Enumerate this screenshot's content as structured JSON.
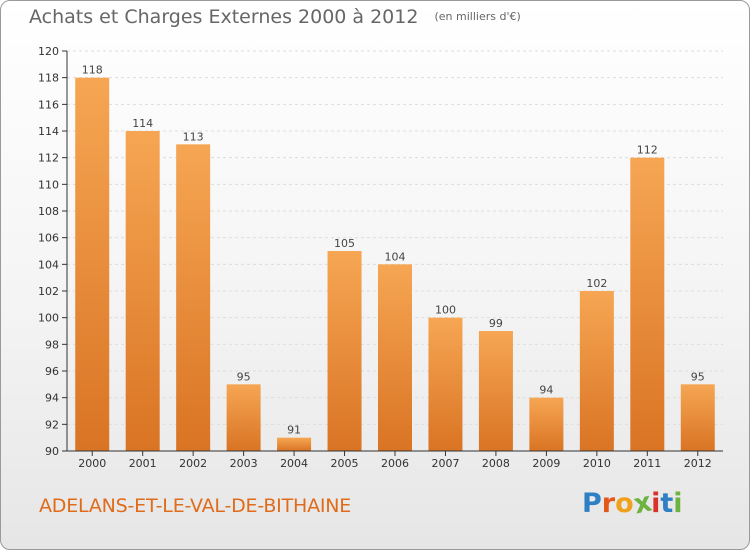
{
  "header": {
    "title": "Achats et Charges Externes 2000 à 2012",
    "unit": "(en milliers d'€)"
  },
  "footer": {
    "commune": "ADELANS-ET-LE-VAL-DE-BITHAINE",
    "logo_letters": [
      "P",
      "r",
      "o",
      "x",
      "i",
      "t",
      "i"
    ],
    "logo_colors": [
      "#2f7fc4",
      "#e4571b",
      "#f0a11c",
      "#6cb33f",
      "#d9322b",
      "#2f7fc4",
      "#6cb33f"
    ]
  },
  "colors": {
    "bar_light": "#f6a653",
    "bar_dark": "#d97424",
    "axis": "#333333",
    "grid": "#dddddd"
  },
  "chart_data": {
    "type": "bar",
    "title": "Achats et Charges Externes 2000 à 2012",
    "subtitle": "(en milliers d'€)",
    "categories": [
      "2000",
      "2001",
      "2002",
      "2003",
      "2004",
      "2005",
      "2006",
      "2007",
      "2008",
      "2009",
      "2010",
      "2011",
      "2012"
    ],
    "values": [
      118,
      114,
      113,
      95,
      91,
      105,
      104,
      100,
      99,
      94,
      102,
      112,
      95
    ],
    "ylim": [
      90,
      120
    ],
    "yticks": [
      90,
      92,
      94,
      96,
      98,
      100,
      102,
      104,
      106,
      108,
      110,
      112,
      114,
      116,
      118,
      120
    ],
    "grid": true,
    "data_labels": true,
    "legend": "none"
  }
}
